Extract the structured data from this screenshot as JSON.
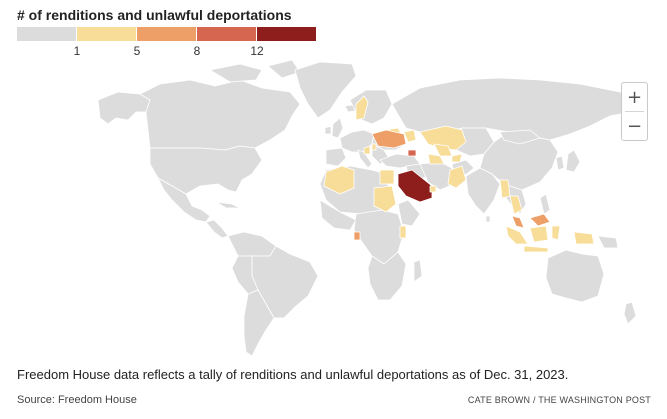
{
  "legend": {
    "title": "# of renditions and unlawful deportations",
    "ticks": [
      "1",
      "5",
      "8",
      "12"
    ],
    "colors": [
      "#dcdcdc",
      "#f8dd98",
      "#ee9f68",
      "#d66650",
      "#8e1e1c"
    ]
  },
  "map": {
    "land_color": "#dcdcdc",
    "border_color": "#ffffff",
    "highlighted_colors": {
      "saudi_arabia": "#8e1e1c",
      "ukraine": "#ee9f68",
      "georgia": "#d66650",
      "equatorial_guinea": "#ee9f68",
      "malaysia": "#ee9f68",
      "default_low": "#f8dd98"
    }
  },
  "zoom": {
    "in_label": "+",
    "out_label": "−"
  },
  "caption": "Freedom House data reflects a tally of renditions and unlawful deportations as of Dec. 31, 2023.",
  "source": "Source: Freedom House",
  "credit": "CATE BROWN / THE WASHINGTON POST"
}
